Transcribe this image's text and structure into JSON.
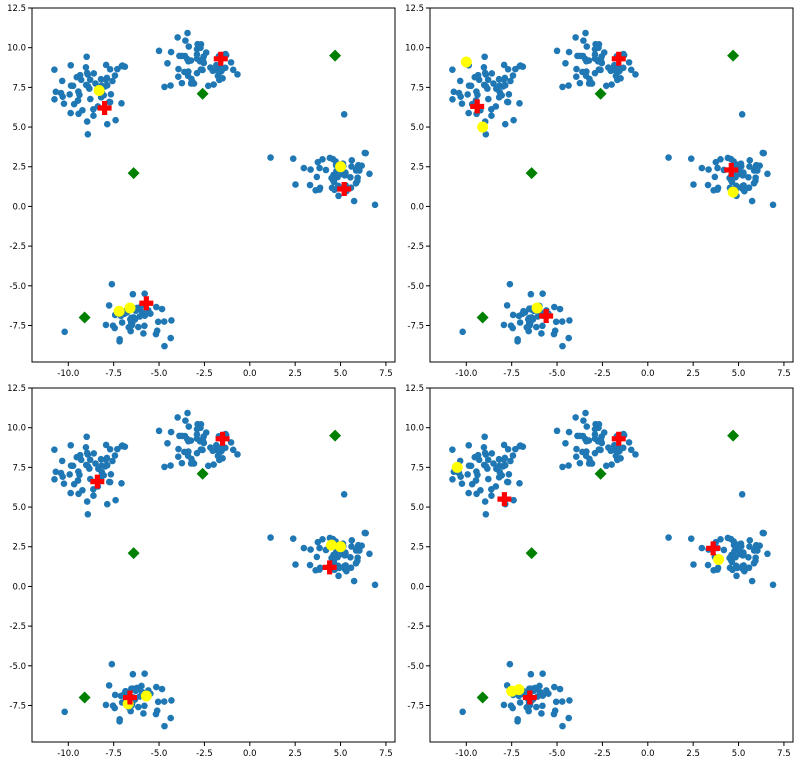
{
  "colors": {
    "data_points": "#1f77b4",
    "initial_centroids": "#008000",
    "sampled_points": "#ffff00",
    "final_centroids": "#ff0000"
  },
  "chart_data": [
    {
      "type": "scatter",
      "panel": "top-left",
      "xlim": [
        -12,
        8
      ],
      "ylim": [
        -9.8,
        12.5
      ],
      "xticks": [
        "-10.0",
        "-7.5",
        "-5.0",
        "-2.5",
        "0.0",
        "2.5",
        "5.0",
        "7.5"
      ],
      "yticks": [
        "12.5",
        "10.0",
        "7.5",
        "5.0",
        "2.5",
        "0.0",
        "-2.5",
        "-5.0",
        "-7.5"
      ],
      "green_diamonds": [
        [
          4.7,
          9.5
        ],
        [
          -2.6,
          7.1
        ],
        [
          -6.4,
          2.1
        ],
        [
          -9.1,
          -7.0
        ]
      ],
      "yellow_points": [
        [
          -8.3,
          7.3
        ],
        [
          5.0,
          2.5
        ],
        [
          -7.2,
          -6.6
        ],
        [
          -6.6,
          -6.4
        ]
      ],
      "red_crosses": [
        [
          -1.6,
          9.3
        ],
        [
          -8.0,
          6.2
        ],
        [
          5.2,
          1.1
        ],
        [
          -5.7,
          -6.1
        ]
      ]
    },
    {
      "type": "scatter",
      "panel": "top-right",
      "xlim": [
        -12,
        8
      ],
      "ylim": [
        -9.8,
        12.5
      ],
      "xticks": [
        "-10.0",
        "-7.5",
        "-5.0",
        "-2.5",
        "0.0",
        "2.5",
        "5.0",
        "7.5"
      ],
      "yticks": [
        "12.5",
        "10.0",
        "7.5",
        "5.0",
        "2.5",
        "0.0",
        "-2.5",
        "-5.0",
        "-7.5"
      ],
      "green_diamonds": [
        [
          4.7,
          9.5
        ],
        [
          -2.6,
          7.1
        ],
        [
          -6.4,
          2.1
        ],
        [
          -9.1,
          -7.0
        ]
      ],
      "yellow_points": [
        [
          -10.0,
          9.1
        ],
        [
          -9.1,
          5.0
        ],
        [
          4.7,
          0.9
        ],
        [
          -6.1,
          -6.4
        ]
      ],
      "red_crosses": [
        [
          -1.6,
          9.3
        ],
        [
          -9.4,
          6.3
        ],
        [
          4.6,
          2.3
        ],
        [
          -5.6,
          -6.9
        ]
      ]
    },
    {
      "type": "scatter",
      "panel": "bottom-left",
      "xlim": [
        -12,
        8
      ],
      "ylim": [
        -9.8,
        12.5
      ],
      "xticks": [
        "-10.0",
        "-7.5",
        "-5.0",
        "-2.5",
        "0.0",
        "2.5",
        "5.0",
        "7.5"
      ],
      "yticks": [
        "12.5",
        "10.0",
        "7.5",
        "5.0",
        "2.5",
        "0.0",
        "-2.5",
        "-5.0",
        "-7.5"
      ],
      "green_diamonds": [
        [
          4.7,
          9.5
        ],
        [
          -2.6,
          7.1
        ],
        [
          -6.4,
          2.1
        ],
        [
          -9.1,
          -7.0
        ]
      ],
      "yellow_points": [
        [
          4.5,
          2.6
        ],
        [
          5.0,
          2.5
        ],
        [
          -5.7,
          -6.9
        ],
        [
          -6.7,
          -7.4
        ]
      ],
      "red_crosses": [
        [
          -1.5,
          9.3
        ],
        [
          -8.4,
          6.6
        ],
        [
          4.4,
          1.2
        ],
        [
          -6.6,
          -7.0
        ]
      ]
    },
    {
      "type": "scatter",
      "panel": "bottom-right",
      "xlim": [
        -12,
        8
      ],
      "ylim": [
        -9.8,
        12.5
      ],
      "xticks": [
        "-10.0",
        "-7.5",
        "-5.0",
        "-2.5",
        "0.0",
        "2.5",
        "5.0",
        "7.5"
      ],
      "yticks": [
        "12.5",
        "10.0",
        "7.5",
        "5.0",
        "2.5",
        "0.0",
        "-2.5",
        "-5.0",
        "-7.5"
      ],
      "green_diamonds": [
        [
          4.7,
          9.5
        ],
        [
          -2.6,
          7.1
        ],
        [
          -6.4,
          2.1
        ],
        [
          -9.1,
          -7.0
        ]
      ],
      "yellow_points": [
        [
          -10.5,
          7.5
        ],
        [
          3.9,
          1.7
        ],
        [
          -7.5,
          -6.6
        ],
        [
          -7.1,
          -6.5
        ]
      ],
      "red_crosses": [
        [
          -1.6,
          9.3
        ],
        [
          -7.9,
          5.5
        ],
        [
          3.6,
          2.4
        ],
        [
          -6.5,
          -7.0
        ]
      ]
    }
  ]
}
